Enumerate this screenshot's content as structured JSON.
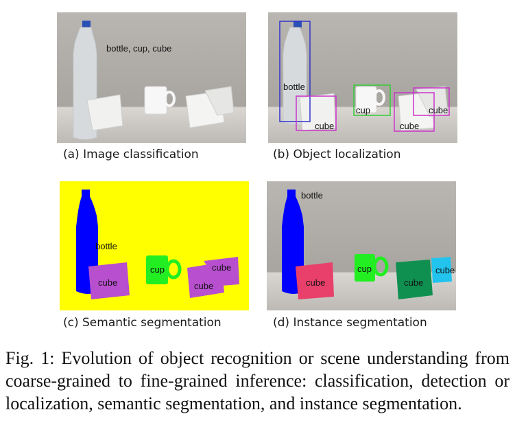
{
  "panels": [
    {
      "id": "a",
      "caption": "(a) Image classification",
      "tags": "bottle, cup, cube"
    },
    {
      "id": "b",
      "caption": "(b) Object localization",
      "labels": {
        "bottle": "bottle",
        "cup": "cup",
        "cube1": "cube",
        "cube2": "cube",
        "cube3": "cube"
      }
    },
    {
      "id": "c",
      "caption": "(c) Semantic segmentation",
      "labels": {
        "bottle": "bottle",
        "cup": "cup",
        "cube1": "cube",
        "cube2": "cube",
        "cube3": "cube"
      }
    },
    {
      "id": "d",
      "caption": "(d) Instance segmentation",
      "labels": {
        "bottle": "bottle",
        "cup": "cup",
        "cube1": "cube",
        "cube2": "cube",
        "cube3": "cube"
      }
    }
  ],
  "figure_caption": "Fig. 1: Evolution of object recognition or scene understanding from coarse-grained to fine-grained inference: classification, detection or localization, semantic segmentation, and instance segmentation.",
  "colors": {
    "semantic_background": "#ffff00",
    "bottle": "#0000ff",
    "cup": "#22ee22",
    "cube_semantic": "#b84fcf",
    "cube_instance_1": "#e8406a",
    "cube_instance_2": "#109050",
    "cube_instance_3": "#22c4ee",
    "bbox_bottle": "#3333cc",
    "bbox_cup": "#33cc33",
    "bbox_cube": "#cc33cc"
  }
}
